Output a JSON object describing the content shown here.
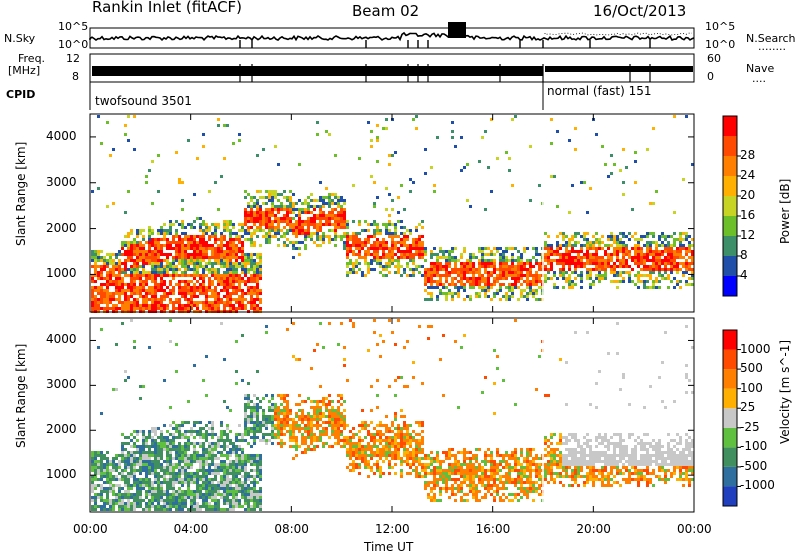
{
  "header": {
    "station": "Rankin Inlet (fitACF)",
    "beam": "Beam 02",
    "date": "16/Oct/2013"
  },
  "top_panels": {
    "nsky_label": "N.Sky",
    "nsearch_label": "N.Search",
    "nsearch_legend": "........",
    "nsky_ticks": [
      "10^5",
      "10^0"
    ],
    "nsearch_ticks": [
      "10^5",
      "10^0"
    ],
    "freq_label_1": "Freq.",
    "freq_label_2": "[MHz]",
    "freq_ticks": [
      "12",
      "8"
    ],
    "nave_label": "Nave",
    "nave_legend": "....",
    "nave_ticks": [
      "60",
      "0"
    ],
    "cpid_label": "CPID",
    "cpid_1": "twofsound 3501",
    "cpid_2": "normal (fast) 151"
  },
  "colors": {
    "power": [
      "#0000ff",
      "#1f4fa8",
      "#3d8f6a",
      "#6dbf2a",
      "#c8d424",
      "#ffb000",
      "#ff7f00",
      "#ff4a00",
      "#ff0000"
    ],
    "velocity": [
      "#1f3fbf",
      "#2f6f9f",
      "#3f8f5f",
      "#5fbf3f",
      "#c8c8c8",
      "#ffb000",
      "#ff7f00",
      "#ff4a00",
      "#ff0000"
    ]
  },
  "chart_data": [
    {
      "type": "heatmap",
      "title": "Power",
      "xlabel": "Time UT",
      "ylabel": "Slant Range [km]",
      "x_ticks": [
        "00:00",
        "04:00",
        "08:00",
        "12:00",
        "16:00",
        "20:00",
        "00:00"
      ],
      "y_ticks": [
        "1000",
        "2000",
        "3000",
        "4000"
      ],
      "ylim": [
        180,
        4500
      ],
      "colorbar": {
        "label": "Power [dB]",
        "ticks": [
          "4",
          "8",
          "12",
          "16",
          "20",
          "24",
          "28"
        ]
      }
    },
    {
      "type": "heatmap",
      "title": "Velocity",
      "xlabel": "Time UT",
      "ylabel": "Slant Range [km]",
      "x_ticks": [
        "00:00",
        "04:00",
        "08:00",
        "12:00",
        "16:00",
        "20:00",
        "00:00"
      ],
      "y_ticks": [
        "1000",
        "2000",
        "3000",
        "4000"
      ],
      "ylim": [
        180,
        4500
      ],
      "colorbar": {
        "label": "Velocity [m s^-1]",
        "ticks": [
          "1000",
          "500",
          "100",
          "25",
          "-25",
          "-100",
          "-500",
          "-1000"
        ]
      }
    }
  ]
}
